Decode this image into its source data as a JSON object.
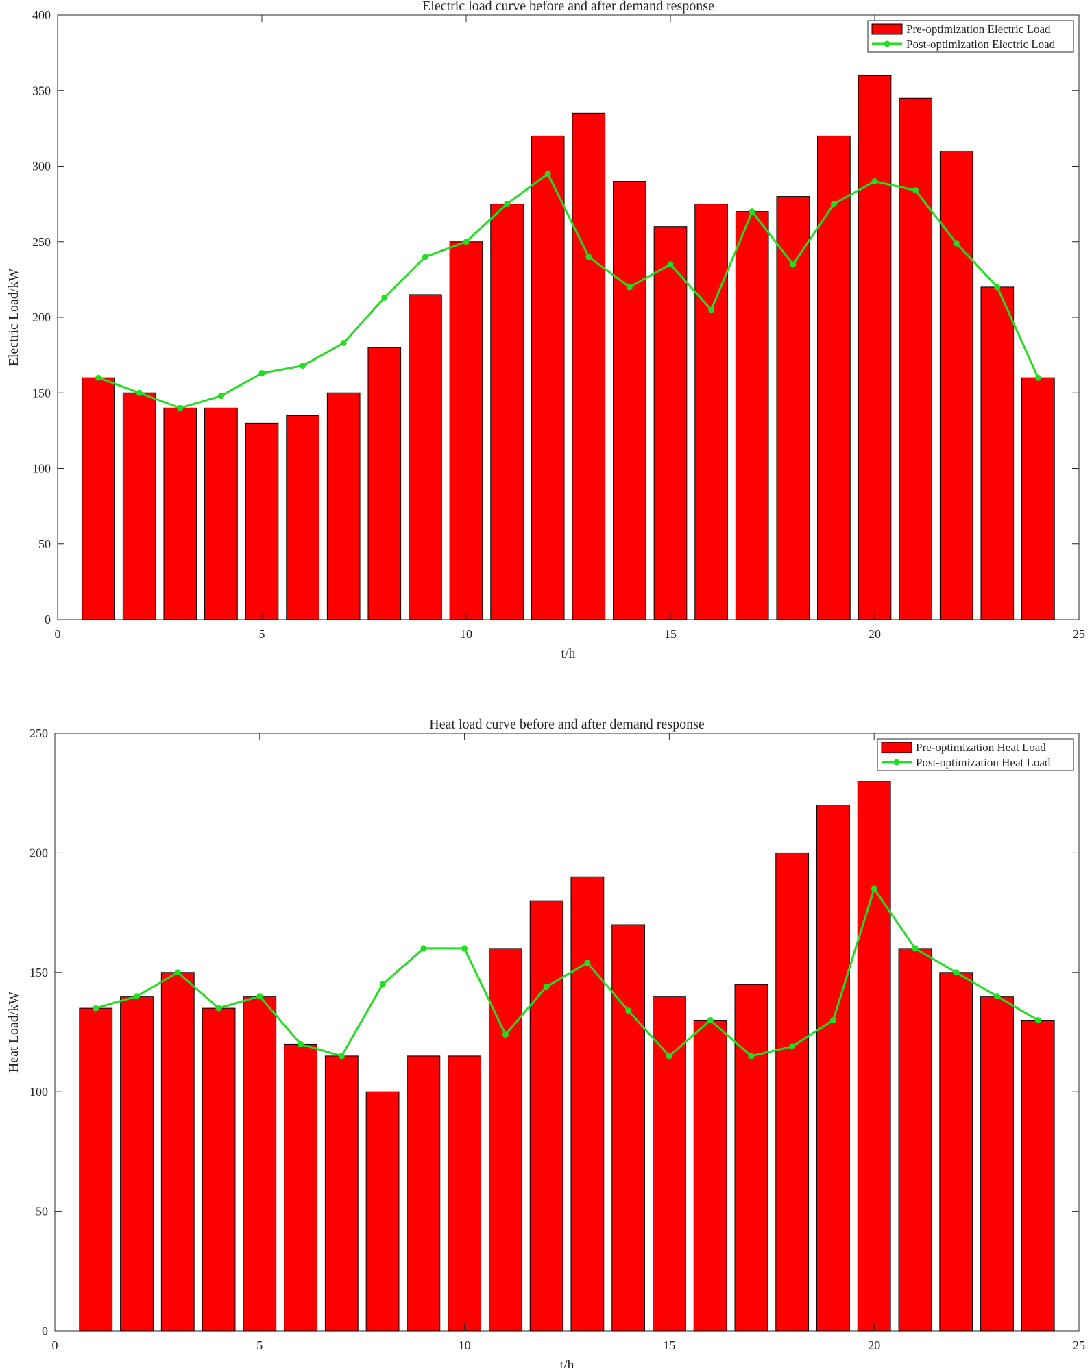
{
  "chart_data": [
    {
      "type": "bar",
      "title": "Electric load curve before and after demand response",
      "xlabel": "t/h",
      "ylabel": "Electric Load/kW",
      "xlim": [
        0,
        25
      ],
      "ylim": [
        0,
        400
      ],
      "xticks": [
        0,
        5,
        10,
        15,
        20,
        25
      ],
      "yticks": [
        0,
        50,
        100,
        150,
        200,
        250,
        300,
        350,
        400
      ],
      "x": [
        1,
        2,
        3,
        4,
        5,
        6,
        7,
        8,
        9,
        10,
        11,
        12,
        13,
        14,
        15,
        16,
        17,
        18,
        19,
        20,
        21,
        22,
        23,
        24
      ],
      "grid": false,
      "legend_position": "top-right",
      "series": [
        {
          "name": "Pre-optimization Electric Load",
          "kind": "bar",
          "color": "#ff0000",
          "values": [
            160,
            150,
            140,
            140,
            130,
            135,
            150,
            180,
            215,
            250,
            275,
            320,
            335,
            290,
            260,
            275,
            270,
            280,
            320,
            360,
            345,
            310,
            220,
            160
          ]
        },
        {
          "name": "Post-optimization Electric Load",
          "kind": "line",
          "color": "#22dd22",
          "values": [
            160,
            150,
            140,
            148,
            163,
            168,
            183,
            213,
            240,
            250,
            275,
            295,
            240,
            220,
            235,
            205,
            270,
            235,
            275,
            290,
            284,
            249,
            220,
            160
          ]
        }
      ]
    },
    {
      "type": "bar",
      "title": "Heat load curve before and after demand response",
      "xlabel": "t/h",
      "ylabel": "Heat Load/kW",
      "xlim": [
        0,
        25
      ],
      "ylim": [
        0,
        250
      ],
      "xticks": [
        0,
        5,
        10,
        15,
        20,
        25
      ],
      "yticks": [
        0,
        50,
        100,
        150,
        200,
        250
      ],
      "x": [
        1,
        2,
        3,
        4,
        5,
        6,
        7,
        8,
        9,
        10,
        11,
        12,
        13,
        14,
        15,
        16,
        17,
        18,
        19,
        20,
        21,
        22,
        23,
        24
      ],
      "grid": false,
      "legend_position": "top-right",
      "series": [
        {
          "name": "Pre-optimization Heat Load",
          "kind": "bar",
          "color": "#ff0000",
          "values": [
            135,
            140,
            150,
            135,
            140,
            120,
            115,
            100,
            115,
            115,
            160,
            180,
            190,
            170,
            140,
            130,
            145,
            200,
            220,
            230,
            160,
            150,
            140,
            130
          ]
        },
        {
          "name": "Post-optimization Heat Load",
          "kind": "line",
          "color": "#22dd22",
          "values": [
            135,
            140,
            150,
            135,
            140,
            120,
            115,
            145,
            160,
            160,
            124,
            144,
            154,
            134,
            115,
            130,
            115,
            119,
            130,
            185,
            160,
            150,
            140,
            130
          ]
        }
      ]
    }
  ]
}
